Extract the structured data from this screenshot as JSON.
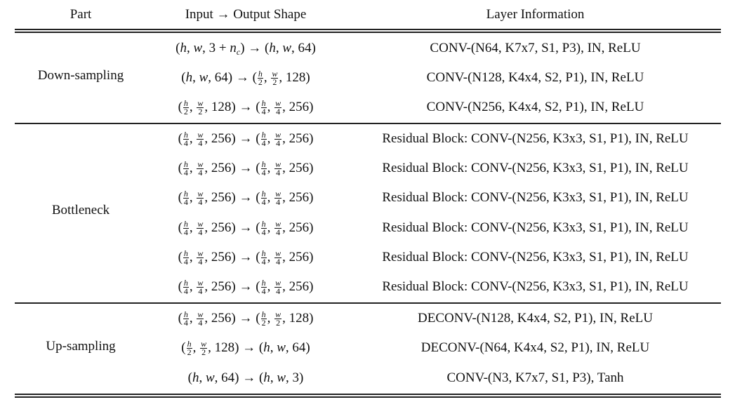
{
  "table": {
    "headers": {
      "part": "Part",
      "shape": "Input → Output Shape",
      "layer": "Layer Information"
    },
    "sections": [
      {
        "part": "Down-sampling",
        "rows": [
          {
            "in": "(h, w, 3 + nc)",
            "out": "(h, w, 64)",
            "layer": "CONV-(N64, K7x7, S1, P3), IN, ReLU"
          },
          {
            "in": "(h, w, 64)",
            "out": "(h/2, w/2, 128)",
            "layer": "CONV-(N128, K4x4, S2, P1), IN, ReLU"
          },
          {
            "in": "(h/2, w/2, 128)",
            "out": "(h/4, w/4, 256)",
            "layer": "CONV-(N256, K4x4, S2, P1), IN, ReLU"
          }
        ]
      },
      {
        "part": "Bottleneck",
        "rows": [
          {
            "in": "(h/4, w/4, 256)",
            "out": "(h/4, w/4, 256)",
            "layer": "Residual Block: CONV-(N256, K3x3, S1, P1), IN, ReLU"
          },
          {
            "in": "(h/4, w/4, 256)",
            "out": "(h/4, w/4, 256)",
            "layer": "Residual Block: CONV-(N256, K3x3, S1, P1), IN, ReLU"
          },
          {
            "in": "(h/4, w/4, 256)",
            "out": "(h/4, w/4, 256)",
            "layer": "Residual Block: CONV-(N256, K3x3, S1, P1), IN, ReLU"
          },
          {
            "in": "(h/4, w/4, 256)",
            "out": "(h/4, w/4, 256)",
            "layer": "Residual Block: CONV-(N256, K3x3, S1, P1), IN, ReLU"
          },
          {
            "in": "(h/4, w/4, 256)",
            "out": "(h/4, w/4, 256)",
            "layer": "Residual Block: CONV-(N256, K3x3, S1, P1), IN, ReLU"
          },
          {
            "in": "(h/4, w/4, 256)",
            "out": "(h/4, w/4, 256)",
            "layer": "Residual Block: CONV-(N256, K3x3, S1, P1), IN, ReLU"
          }
        ]
      },
      {
        "part": "Up-sampling",
        "rows": [
          {
            "in": "(h/4, w/4, 256)",
            "out": "(h/2, w/2, 128)",
            "layer": "DECONV-(N128, K4x4, S2, P1), IN, ReLU"
          },
          {
            "in": "(h/2, w/2, 128)",
            "out": "(h, w, 64)",
            "layer": "DECONV-(N64, K4x4, S2, P1), IN, ReLU"
          },
          {
            "in": "(h, w, 64)",
            "out": "(h, w, 3)",
            "layer": "CONV-(N3, K7x7, S1, P3), Tanh"
          }
        ]
      }
    ]
  }
}
